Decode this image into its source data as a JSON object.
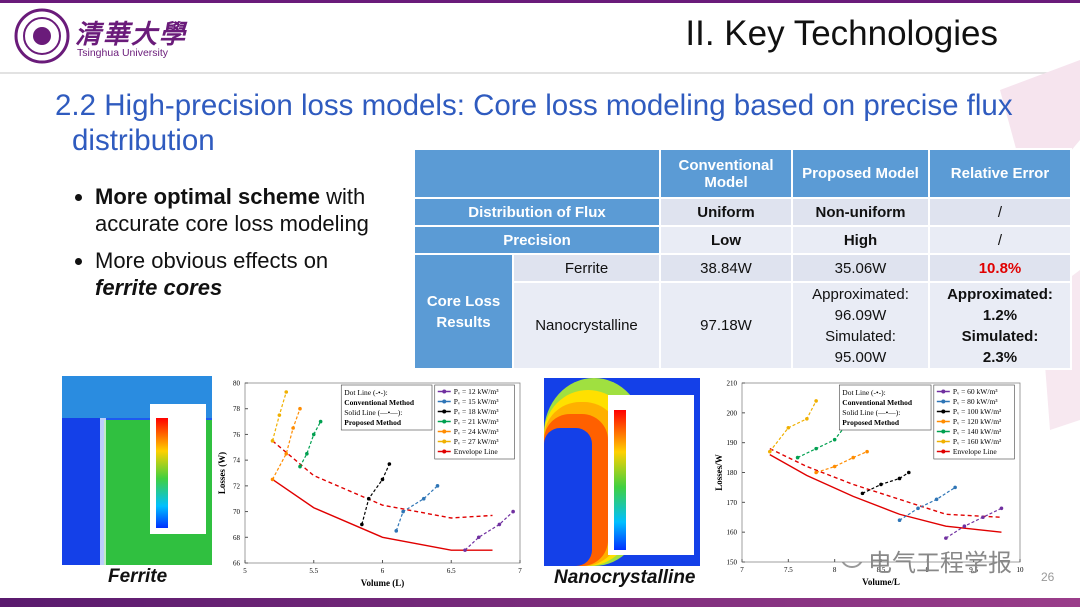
{
  "header": {
    "logo_cn": "清華大學",
    "logo_en": "Tsinghua University",
    "section": "II. Key Technologies"
  },
  "heading": "2.2 High-precision loss models: Core loss modeling based on precise flux distribution",
  "bullets": [
    {
      "bold": "More optimal scheme",
      "text": " with accurate core loss modeling"
    },
    {
      "text": "More obvious effects on ",
      "emphasis": "ferrite cores"
    }
  ],
  "table": {
    "header": [
      "Conventional Model",
      "Proposed Model",
      "Relative Error"
    ],
    "rows": [
      {
        "label": "Distribution of Flux",
        "cells": [
          "Uniform",
          "Non-uniform",
          "/"
        ]
      },
      {
        "label": "Precision",
        "cells": [
          "Low",
          "High",
          "/"
        ]
      }
    ],
    "group": {
      "label": "Core Loss Results",
      "rows": [
        {
          "label": "Ferrite",
          "cells": [
            "38.84W",
            "35.06W",
            "10.8%"
          ]
        },
        {
          "label": "Nanocrystalline",
          "cells": [
            "97.18W",
            [
              "Approximated:",
              "96.09W",
              "Simulated:",
              "95.00W"
            ],
            [
              "Approximated:",
              "1.2%",
              "Simulated:",
              "2.3%"
            ]
          ]
        }
      ]
    }
  },
  "figures": [
    {
      "caption": "Ferrite",
      "plot": {
        "xlabel": "Volume (L)",
        "ylabel": "Losses (W)",
        "xlim": [
          5,
          7
        ],
        "ylim": [
          66,
          80
        ],
        "xticks": [
          5,
          5.5,
          6,
          6.5,
          7
        ],
        "yticks": [
          66,
          68,
          70,
          72,
          74,
          76,
          78,
          80
        ],
        "method_legend": [
          "Dot Line (-•-):",
          "Conventional Method",
          "Solid Line (—•—):",
          "Proposed Method"
        ],
        "series": [
          {
            "name": "Pᵥ = 12 kW/m³",
            "color": "#7030a0",
            "x": [
              6.6,
              6.7,
              6.85,
              6.95
            ],
            "y": [
              67,
              68,
              69,
              70
            ]
          },
          {
            "name": "Pᵥ = 15 kW/m³",
            "color": "#2e75b6",
            "x": [
              6.1,
              6.15,
              6.3,
              6.4
            ],
            "y": [
              68.5,
              70,
              71,
              72
            ]
          },
          {
            "name": "Pᵥ = 18 kW/m³",
            "color": "#000000",
            "x": [
              5.85,
              5.9,
              6.0,
              6.05
            ],
            "y": [
              69,
              71,
              72.5,
              73.7
            ]
          },
          {
            "name": "Pᵥ = 21 kW/m³",
            "color": "#00a050",
            "x": [
              5.4,
              5.45,
              5.5,
              5.55
            ],
            "y": [
              73.5,
              74.5,
              76,
              77
            ]
          },
          {
            "name": "Pᵥ = 24 kW/m³",
            "color": "#ff8c00",
            "x": [
              5.2,
              5.3,
              5.35,
              5.4
            ],
            "y": [
              72.5,
              74.5,
              76.5,
              78
            ]
          },
          {
            "name": "Pᵥ = 27 kW/m³",
            "color": "#f0b000",
            "x": [
              5.2,
              5.25,
              5.3
            ],
            "y": [
              75.5,
              77.5,
              79.3
            ]
          }
        ],
        "envelope": {
          "name": "Envelope Line",
          "color": "#e00000",
          "x": [
            5.2,
            5.5,
            6.0,
            6.5,
            6.8
          ],
          "y_proposed": [
            72.5,
            70.3,
            68,
            67,
            67
          ],
          "y_conventional": [
            75.5,
            72.8,
            70.5,
            69.5,
            69.7
          ]
        }
      }
    },
    {
      "caption": "Nanocrystalline",
      "plot": {
        "xlabel": "Volume/L",
        "ylabel": "Losses/W",
        "xlim": [
          7,
          10
        ],
        "ylim": [
          150,
          210
        ],
        "xticks": [
          7,
          7.5,
          8,
          8.5,
          9,
          9.5,
          10
        ],
        "yticks": [
          150,
          160,
          170,
          180,
          190,
          200,
          210
        ],
        "method_legend": [
          "Dot Line (-•-):",
          "Conventional Method",
          "Solid Line (—•—):",
          "Proposed Method"
        ],
        "series": [
          {
            "name": "Pᵥ = 60 kW/m³",
            "color": "#7030a0",
            "x": [
              9.2,
              9.4,
              9.6,
              9.8
            ],
            "y": [
              158,
              162,
              165,
              168
            ]
          },
          {
            "name": "Pᵥ = 80 kW/m³",
            "color": "#2e75b6",
            "x": [
              8.7,
              8.9,
              9.1,
              9.3
            ],
            "y": [
              164,
              168,
              171,
              175
            ]
          },
          {
            "name": "Pᵥ = 100 kW/m³",
            "color": "#000000",
            "x": [
              8.3,
              8.5,
              8.7,
              8.8
            ],
            "y": [
              173,
              176,
              178,
              180
            ]
          },
          {
            "name": "Pᵥ = 120 kW/m³",
            "color": "#ff8c00",
            "x": [
              7.8,
              8.0,
              8.2,
              8.35
            ],
            "y": [
              180,
              182,
              185,
              187
            ]
          },
          {
            "name": "Pᵥ = 140 kW/m³",
            "color": "#00a050",
            "x": [
              7.6,
              7.8,
              8.0,
              8.1
            ],
            "y": [
              185,
              188,
              191,
              195
            ]
          },
          {
            "name": "Pᵥ = 160 kW/m³",
            "color": "#f0b000",
            "x": [
              7.3,
              7.5,
              7.7,
              7.8
            ],
            "y": [
              187,
              195,
              198,
              204
            ]
          }
        ],
        "envelope": {
          "name": "Envelope Line",
          "color": "#e00000",
          "x": [
            7.3,
            7.7,
            8.2,
            8.7,
            9.2,
            9.8
          ],
          "y_proposed": [
            186,
            179,
            172,
            166,
            162,
            160
          ],
          "y_conventional": [
            188,
            182,
            176,
            171,
            166,
            165
          ]
        }
      }
    }
  ],
  "watermark": "电气工程学报",
  "page_number": "26"
}
